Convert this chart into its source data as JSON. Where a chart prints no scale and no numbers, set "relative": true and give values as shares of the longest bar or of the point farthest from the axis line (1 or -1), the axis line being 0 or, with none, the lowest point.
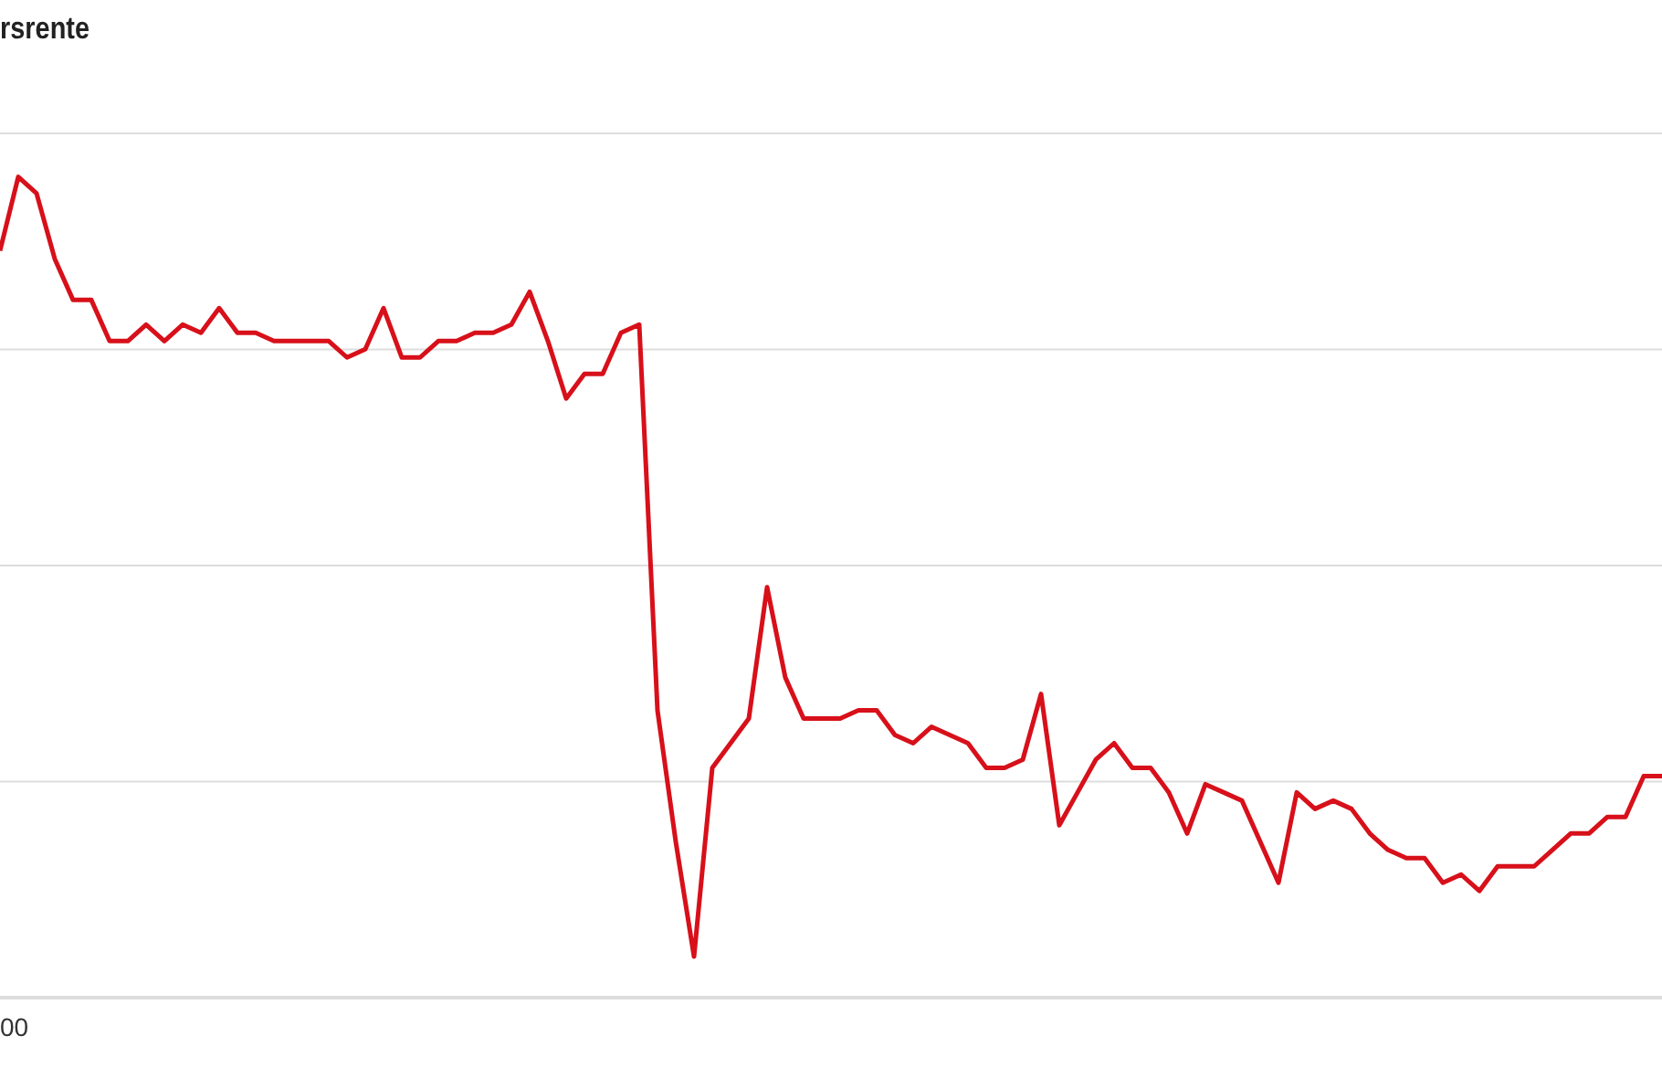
{
  "chart_data": {
    "type": "line",
    "title": "rsrente",
    "relative": true,
    "grid": "y",
    "annotations": [
      "00"
    ],
    "categories": [
      null,
      null,
      null,
      null,
      null,
      null,
      null,
      null,
      null,
      null,
      null,
      null,
      null,
      null,
      null,
      null,
      null,
      null,
      null,
      null,
      null,
      null,
      null,
      null,
      null,
      null,
      null,
      null,
      null,
      null,
      null,
      null,
      null,
      null,
      null,
      null,
      null,
      null,
      null,
      null,
      null,
      null,
      null,
      null,
      null,
      null,
      null,
      null,
      null,
      null,
      null,
      null,
      null,
      null,
      null,
      null,
      null,
      null,
      null,
      null,
      null,
      null,
      null,
      null,
      null,
      null,
      null,
      null,
      null,
      null,
      null,
      null,
      null,
      null,
      null,
      null,
      null,
      null,
      null,
      null,
      null,
      null,
      null,
      null,
      null,
      null,
      null,
      null,
      null,
      null,
      null,
      null
    ],
    "series": [
      {
        "color": "#d7101a",
        "values": [
          0.91,
          1.0,
          0.98,
          0.9,
          0.85,
          0.85,
          0.8,
          0.8,
          0.82,
          0.8,
          0.82,
          0.81,
          0.84,
          0.81,
          0.81,
          0.8,
          0.8,
          0.8,
          0.8,
          0.78,
          0.79,
          0.84,
          0.78,
          0.78,
          0.8,
          0.8,
          0.81,
          0.81,
          0.82,
          0.86,
          0.8,
          0.73,
          0.76,
          0.76,
          0.81,
          0.82,
          0.35,
          0.19,
          0.05,
          0.28,
          0.31,
          0.34,
          0.5,
          0.39,
          0.34,
          0.34,
          0.34,
          0.35,
          0.35,
          0.32,
          0.31,
          0.33,
          0.32,
          0.31,
          0.28,
          0.28,
          0.29,
          0.37,
          0.21,
          0.25,
          0.29,
          0.31,
          0.28,
          0.28,
          0.25,
          0.2,
          0.26,
          0.25,
          0.24,
          0.19,
          0.14,
          0.25,
          0.23,
          0.24,
          0.23,
          0.2,
          0.18,
          0.17,
          0.17,
          0.14,
          0.15,
          0.13,
          0.16,
          0.16,
          0.16,
          0.18,
          0.2,
          0.2,
          0.22,
          0.22,
          0.27,
          0.27
        ]
      }
    ],
    "marker": "none",
    "line_style": "solid"
  }
}
